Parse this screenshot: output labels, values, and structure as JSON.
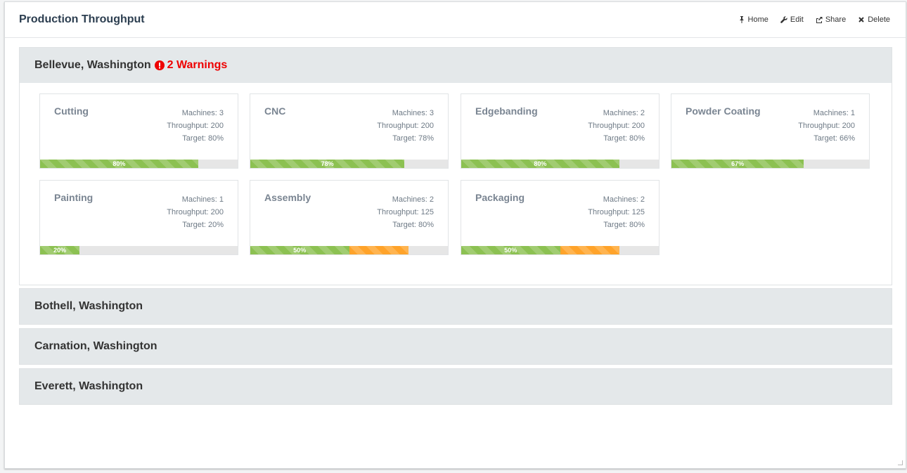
{
  "header": {
    "title": "Production Throughput",
    "actions": [
      {
        "icon": "pin-icon",
        "label": "Home"
      },
      {
        "icon": "wrench-icon",
        "label": "Edit"
      },
      {
        "icon": "share-icon",
        "label": "Share"
      },
      {
        "icon": "close-icon",
        "label": "Delete"
      }
    ]
  },
  "colors": {
    "green": "#8cc152",
    "orange": "#ffa32a",
    "warning": "#e00000"
  },
  "locations": [
    {
      "name": "Bellevue, Washington",
      "warning": "2 Warnings",
      "expanded": true,
      "stations": [
        {
          "name": "Cutting",
          "machines": "Machines: 3",
          "throughput": "Throughput: 200",
          "target": "Target: 80%",
          "label": "80%",
          "green": 0.8,
          "orange": 0
        },
        {
          "name": "CNC",
          "machines": "Machines: 3",
          "throughput": "Throughput: 200",
          "target": "Target: 78%",
          "label": "78%",
          "green": 0.78,
          "orange": 0
        },
        {
          "name": "Edgebanding",
          "machines": "Machines: 2",
          "throughput": "Throughput: 200",
          "target": "Target: 80%",
          "label": "80%",
          "green": 0.8,
          "orange": 0
        },
        {
          "name": "Powder Coating",
          "machines": "Machines: 1",
          "throughput": "Throughput: 200",
          "target": "Target: 66%",
          "label": "67%",
          "green": 0.67,
          "orange": 0
        },
        {
          "name": "Painting",
          "machines": "Machines: 1",
          "throughput": "Throughput: 200",
          "target": "Target: 20%",
          "label": "20%",
          "green": 0.2,
          "orange": 0
        },
        {
          "name": "Assembly",
          "machines": "Machines: 2",
          "throughput": "Throughput: 125",
          "target": "Target: 80%",
          "label": "50%",
          "green": 0.5,
          "orange": 0.3
        },
        {
          "name": "Packaging",
          "machines": "Machines: 2",
          "throughput": "Throughput: 125",
          "target": "Target: 80%",
          "label": "50%",
          "green": 0.5,
          "orange": 0.3
        }
      ]
    },
    {
      "name": "Bothell, Washington",
      "expanded": false
    },
    {
      "name": "Carnation, Washington",
      "expanded": false
    },
    {
      "name": "Everett, Washington",
      "expanded": false
    }
  ]
}
